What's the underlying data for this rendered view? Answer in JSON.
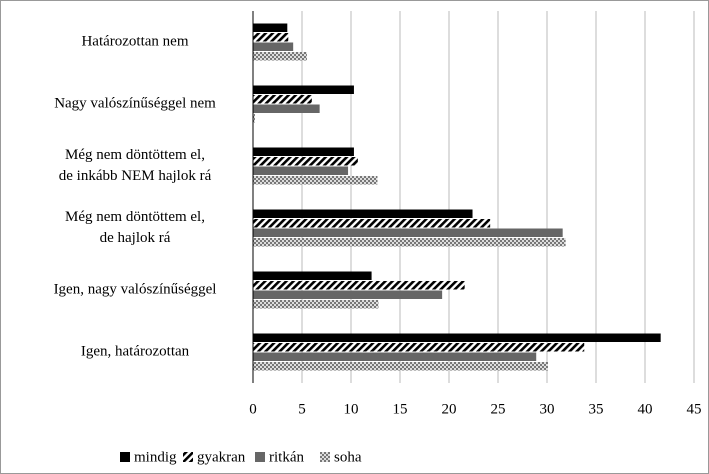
{
  "chart_data": {
    "type": "hbar",
    "categories": [
      [
        "Határozottan nem"
      ],
      [
        "Nagy valószínűséggel nem"
      ],
      [
        "Még nem döntöttem el,",
        "de inkább NEM hajlok rá"
      ],
      [
        "Még nem döntöttem el,",
        "de hajlok rá"
      ],
      [
        "Igen, nagy valószínűséggel"
      ],
      [
        "Igen, határozottan"
      ]
    ],
    "series": [
      {
        "name": "mindig",
        "color": "#000000",
        "pattern": "solid",
        "values": [
          3.5,
          10.3,
          10.3,
          22.4,
          12.1,
          41.6
        ]
      },
      {
        "name": "gyakran",
        "color": "#000000",
        "pattern": "diagonal",
        "values": [
          3.6,
          6.0,
          10.7,
          24.2,
          21.6,
          33.8
        ]
      },
      {
        "name": "ritkán",
        "color": "#666666",
        "pattern": "solid",
        "values": [
          4.1,
          6.8,
          9.7,
          31.6,
          19.3,
          28.9
        ]
      },
      {
        "name": "soha",
        "color": "#999999",
        "pattern": "checker",
        "values": [
          5.5,
          0.2,
          12.7,
          31.9,
          12.8,
          30.1
        ]
      }
    ],
    "xlim": [
      0,
      45
    ],
    "xticks": [
      0,
      5,
      10,
      15,
      20,
      25,
      30,
      35,
      40,
      45
    ],
    "grid": true,
    "legend": "bottom"
  }
}
